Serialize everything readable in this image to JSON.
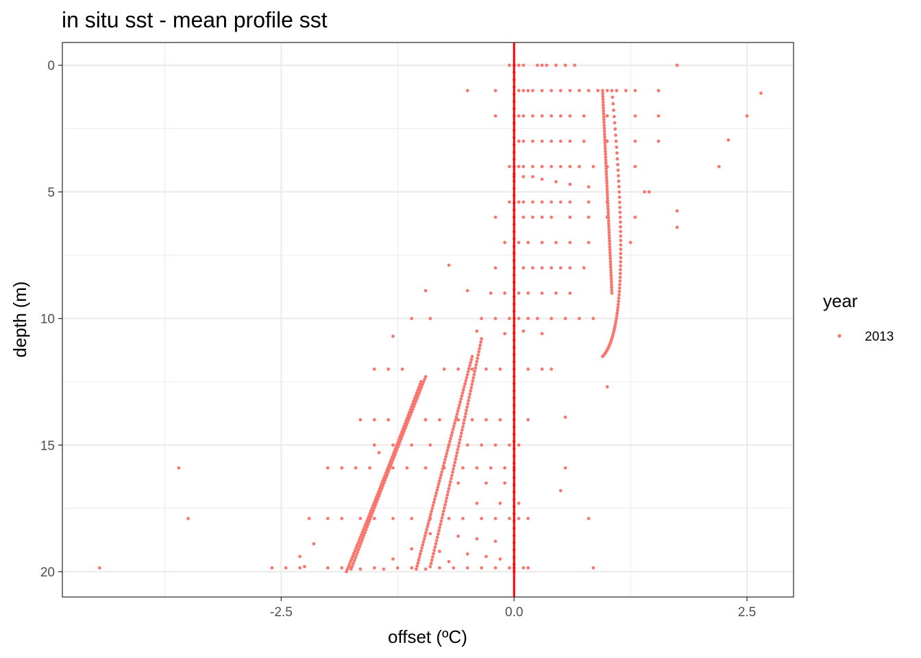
{
  "chart_data": {
    "type": "scatter",
    "title": "in situ sst - mean profile sst",
    "xlabel": "offset (ºC)",
    "ylabel": "depth (m)",
    "xlim": [
      -4.85,
      3.0
    ],
    "ylim": [
      21.0,
      -0.9
    ],
    "y_reversed": true,
    "grid": true,
    "x_ticks": [
      {
        "value": -2.5,
        "label": "-2.5"
      },
      {
        "value": 0.0,
        "label": "0.0"
      },
      {
        "value": 2.5,
        "label": "2.5"
      }
    ],
    "y_ticks": [
      {
        "value": 0,
        "label": "0"
      },
      {
        "value": 5,
        "label": "5"
      },
      {
        "value": 10,
        "label": "10"
      },
      {
        "value": 15,
        "label": "15"
      },
      {
        "value": 20,
        "label": "20"
      }
    ],
    "reference_line": {
      "x": 0,
      "color": "#ff0000"
    },
    "legend": {
      "title": "year",
      "position": "right",
      "entries": [
        {
          "label": "2013",
          "color": "#f8766d"
        }
      ]
    },
    "series": [
      {
        "name": "2013",
        "color": "#f8766d",
        "points": [
          [
            -0.05,
            0
          ],
          [
            0.0,
            0
          ],
          [
            0.05,
            0
          ],
          [
            0.1,
            0
          ],
          [
            0.25,
            0
          ],
          [
            0.3,
            0
          ],
          [
            0.35,
            0
          ],
          [
            0.45,
            0
          ],
          [
            0.55,
            0
          ],
          [
            0.65,
            0
          ],
          [
            1.75,
            0
          ],
          [
            -0.5,
            1
          ],
          [
            -0.2,
            1
          ],
          [
            0.05,
            1
          ],
          [
            0.1,
            1
          ],
          [
            0.15,
            1
          ],
          [
            0.2,
            1
          ],
          [
            0.3,
            1
          ],
          [
            0.4,
            1
          ],
          [
            0.5,
            1
          ],
          [
            0.6,
            1
          ],
          [
            0.7,
            1
          ],
          [
            0.8,
            1
          ],
          [
            0.9,
            1
          ],
          [
            1.0,
            1
          ],
          [
            1.1,
            1
          ],
          [
            1.2,
            1
          ],
          [
            1.3,
            1
          ],
          [
            1.55,
            1
          ],
          [
            2.65,
            1.1
          ],
          [
            -0.2,
            2
          ],
          [
            0.05,
            2
          ],
          [
            0.1,
            2
          ],
          [
            0.2,
            2
          ],
          [
            0.3,
            2
          ],
          [
            0.4,
            2
          ],
          [
            0.5,
            2
          ],
          [
            0.6,
            2
          ],
          [
            0.75,
            2
          ],
          [
            1.0,
            2
          ],
          [
            1.3,
            2
          ],
          [
            1.55,
            2
          ],
          [
            2.5,
            2
          ],
          [
            0.05,
            3
          ],
          [
            0.1,
            3
          ],
          [
            0.2,
            3
          ],
          [
            0.3,
            3
          ],
          [
            0.4,
            3
          ],
          [
            0.5,
            3
          ],
          [
            0.6,
            3
          ],
          [
            0.75,
            3
          ],
          [
            1.0,
            3
          ],
          [
            1.3,
            3
          ],
          [
            1.55,
            3
          ],
          [
            2.3,
            2.95
          ],
          [
            -0.05,
            4
          ],
          [
            0.05,
            4
          ],
          [
            0.1,
            4
          ],
          [
            0.2,
            4
          ],
          [
            0.3,
            4
          ],
          [
            0.4,
            4
          ],
          [
            0.5,
            4
          ],
          [
            0.6,
            4
          ],
          [
            0.7,
            4
          ],
          [
            0.85,
            4
          ],
          [
            1.0,
            4
          ],
          [
            1.3,
            4
          ],
          [
            2.2,
            4
          ],
          [
            0.0,
            4.4
          ],
          [
            0.1,
            4.4
          ],
          [
            0.2,
            4.4
          ],
          [
            0.3,
            4.5
          ],
          [
            0.45,
            4.6
          ],
          [
            0.6,
            4.7
          ],
          [
            0.8,
            4.8
          ],
          [
            1.4,
            5.0
          ],
          [
            1.45,
            5.0
          ],
          [
            -0.05,
            5.4
          ],
          [
            0.05,
            5.4
          ],
          [
            0.1,
            5.4
          ],
          [
            0.2,
            5.4
          ],
          [
            0.3,
            5.4
          ],
          [
            0.4,
            5.4
          ],
          [
            0.5,
            5.4
          ],
          [
            0.6,
            5.4
          ],
          [
            0.8,
            5.4
          ],
          [
            1.0,
            5.4
          ],
          [
            -0.2,
            6
          ],
          [
            0.0,
            6
          ],
          [
            0.1,
            6
          ],
          [
            0.2,
            6
          ],
          [
            0.3,
            6
          ],
          [
            0.4,
            6
          ],
          [
            0.6,
            6
          ],
          [
            0.8,
            6
          ],
          [
            1.0,
            6
          ],
          [
            1.3,
            6
          ],
          [
            1.75,
            5.75
          ],
          [
            1.75,
            6.4
          ],
          [
            -0.1,
            7
          ],
          [
            0.05,
            7
          ],
          [
            0.15,
            7
          ],
          [
            0.3,
            7
          ],
          [
            0.45,
            7
          ],
          [
            0.6,
            7
          ],
          [
            0.8,
            7
          ],
          [
            1.25,
            7
          ],
          [
            -0.7,
            7.9
          ],
          [
            -0.2,
            8
          ],
          [
            0.0,
            8
          ],
          [
            0.1,
            8
          ],
          [
            0.2,
            8
          ],
          [
            0.3,
            8
          ],
          [
            0.4,
            8
          ],
          [
            0.5,
            8
          ],
          [
            0.6,
            8
          ],
          [
            0.75,
            8
          ],
          [
            -0.95,
            8.9
          ],
          [
            -0.5,
            8.9
          ],
          [
            -0.25,
            9
          ],
          [
            -0.1,
            9
          ],
          [
            0.05,
            9
          ],
          [
            0.15,
            9
          ],
          [
            0.3,
            9
          ],
          [
            0.45,
            9
          ],
          [
            0.6,
            9
          ],
          [
            -1.1,
            10
          ],
          [
            -0.9,
            10
          ],
          [
            -0.35,
            10
          ],
          [
            -0.2,
            10
          ],
          [
            -0.05,
            10
          ],
          [
            0.05,
            10
          ],
          [
            0.15,
            10
          ],
          [
            0.25,
            10
          ],
          [
            0.4,
            10
          ],
          [
            0.55,
            10
          ],
          [
            0.7,
            10
          ],
          [
            0.85,
            10
          ],
          [
            -1.3,
            10.7
          ],
          [
            -0.4,
            10.5
          ],
          [
            -0.1,
            10.6
          ],
          [
            0.1,
            10.5
          ],
          [
            0.3,
            10.6
          ],
          [
            -1.5,
            12
          ],
          [
            -1.35,
            12
          ],
          [
            -1.2,
            12
          ],
          [
            -0.75,
            12
          ],
          [
            -0.6,
            12
          ],
          [
            -0.45,
            12
          ],
          [
            -0.3,
            12
          ],
          [
            -0.15,
            12
          ],
          [
            0.0,
            12
          ],
          [
            0.15,
            12
          ],
          [
            0.3,
            12
          ],
          [
            0.4,
            12
          ],
          [
            1.0,
            12.7
          ],
          [
            -1.65,
            14
          ],
          [
            -1.5,
            14
          ],
          [
            -1.35,
            14
          ],
          [
            -1.15,
            14
          ],
          [
            -0.95,
            14
          ],
          [
            -0.8,
            14
          ],
          [
            -0.6,
            14
          ],
          [
            -0.45,
            14
          ],
          [
            -0.3,
            14
          ],
          [
            -0.15,
            14
          ],
          [
            0.0,
            14
          ],
          [
            0.15,
            14
          ],
          [
            0.55,
            13.9
          ],
          [
            -1.5,
            15
          ],
          [
            -1.3,
            15
          ],
          [
            -1.1,
            15
          ],
          [
            -0.9,
            15
          ],
          [
            -0.7,
            15
          ],
          [
            -0.5,
            15
          ],
          [
            -0.35,
            15
          ],
          [
            -0.2,
            15
          ],
          [
            -0.05,
            15
          ],
          [
            0.05,
            15
          ],
          [
            -1.45,
            15.3
          ],
          [
            -3.6,
            15.9
          ],
          [
            -2.0,
            15.9
          ],
          [
            -1.85,
            15.9
          ],
          [
            -1.7,
            15.9
          ],
          [
            -1.55,
            15.9
          ],
          [
            -1.3,
            15.9
          ],
          [
            -1.15,
            15.9
          ],
          [
            -0.95,
            15.9
          ],
          [
            -0.75,
            15.9
          ],
          [
            -0.55,
            15.9
          ],
          [
            -0.4,
            15.9
          ],
          [
            -0.25,
            15.9
          ],
          [
            -0.1,
            15.9
          ],
          [
            0.0,
            15.9
          ],
          [
            0.55,
            15.9
          ],
          [
            -0.6,
            16.5
          ],
          [
            -0.3,
            16.5
          ],
          [
            -0.1,
            16.5
          ],
          [
            0.5,
            16.8
          ],
          [
            -0.4,
            17.3
          ],
          [
            -0.15,
            17.3
          ],
          [
            0.05,
            17.3
          ],
          [
            -3.5,
            17.9
          ],
          [
            -2.2,
            17.9
          ],
          [
            -2.0,
            17.9
          ],
          [
            -1.85,
            17.9
          ],
          [
            -1.65,
            17.9
          ],
          [
            -1.5,
            17.9
          ],
          [
            -1.3,
            17.9
          ],
          [
            -1.1,
            17.9
          ],
          [
            -0.9,
            17.9
          ],
          [
            -0.7,
            17.9
          ],
          [
            -0.55,
            17.9
          ],
          [
            -0.35,
            17.9
          ],
          [
            -0.2,
            17.9
          ],
          [
            -0.05,
            17.9
          ],
          [
            0.05,
            17.9
          ],
          [
            0.15,
            17.9
          ],
          [
            0.8,
            17.9
          ],
          [
            -2.15,
            18.9
          ],
          [
            -0.9,
            18.5
          ],
          [
            -0.6,
            18.6
          ],
          [
            -0.4,
            18.7
          ],
          [
            -0.2,
            18.8
          ],
          [
            -1.1,
            19.1
          ],
          [
            -0.8,
            19.2
          ],
          [
            -0.5,
            19.3
          ],
          [
            -0.3,
            19.4
          ],
          [
            -1.3,
            19.5
          ],
          [
            -0.7,
            19.6
          ],
          [
            -0.15,
            19.5
          ],
          [
            -2.3,
            19.4
          ],
          [
            -4.45,
            19.85
          ],
          [
            -2.6,
            19.85
          ],
          [
            -2.45,
            19.85
          ],
          [
            -2.3,
            19.85
          ],
          [
            -2.25,
            19.8
          ],
          [
            -2.0,
            19.85
          ],
          [
            -1.85,
            19.85
          ],
          [
            -1.75,
            19.85
          ],
          [
            -1.65,
            19.9
          ],
          [
            -1.5,
            19.85
          ],
          [
            -1.4,
            19.9
          ],
          [
            -1.25,
            19.85
          ],
          [
            -1.1,
            19.85
          ],
          [
            -0.95,
            19.9
          ],
          [
            -0.8,
            19.85
          ],
          [
            -0.65,
            19.85
          ],
          [
            -0.5,
            19.85
          ],
          [
            -0.35,
            19.85
          ],
          [
            -0.2,
            19.85
          ],
          [
            -0.05,
            19.85
          ],
          [
            0.0,
            19.85
          ],
          [
            0.1,
            19.85
          ],
          [
            0.15,
            19.85
          ],
          [
            0.85,
            19.85
          ]
        ],
        "curves": [
          {
            "x0": 1.05,
            "x1": 1.28,
            "x2": 0.95,
            "y0": 1.0,
            "y1": 10.2,
            "y2": 11.5
          },
          {
            "x0": 0.0,
            "x1": 0.0,
            "x2": 0.0,
            "y0": 0,
            "y1": 10,
            "y2": 20
          },
          {
            "x0": -0.95,
            "x1": -1.35,
            "x2": -1.75,
            "y0": 12.3,
            "y1": 16.0,
            "y2": 19.9
          },
          {
            "x0": -1.0,
            "x1": -1.4,
            "x2": -1.8,
            "y0": 12.5,
            "y1": 16.4,
            "y2": 20.0
          },
          {
            "x0": -0.45,
            "x1": -0.75,
            "x2": -1.05,
            "y0": 11.5,
            "y1": 15.7,
            "y2": 19.9
          },
          {
            "x0": -0.35,
            "x1": -0.6,
            "x2": -0.9,
            "y0": 10.8,
            "y1": 15.3,
            "y2": 19.8
          },
          {
            "x0": 0.95,
            "x1": 1.0,
            "x2": 1.05,
            "y0": 1.0,
            "y1": 5.0,
            "y2": 9.0
          }
        ]
      }
    ]
  }
}
